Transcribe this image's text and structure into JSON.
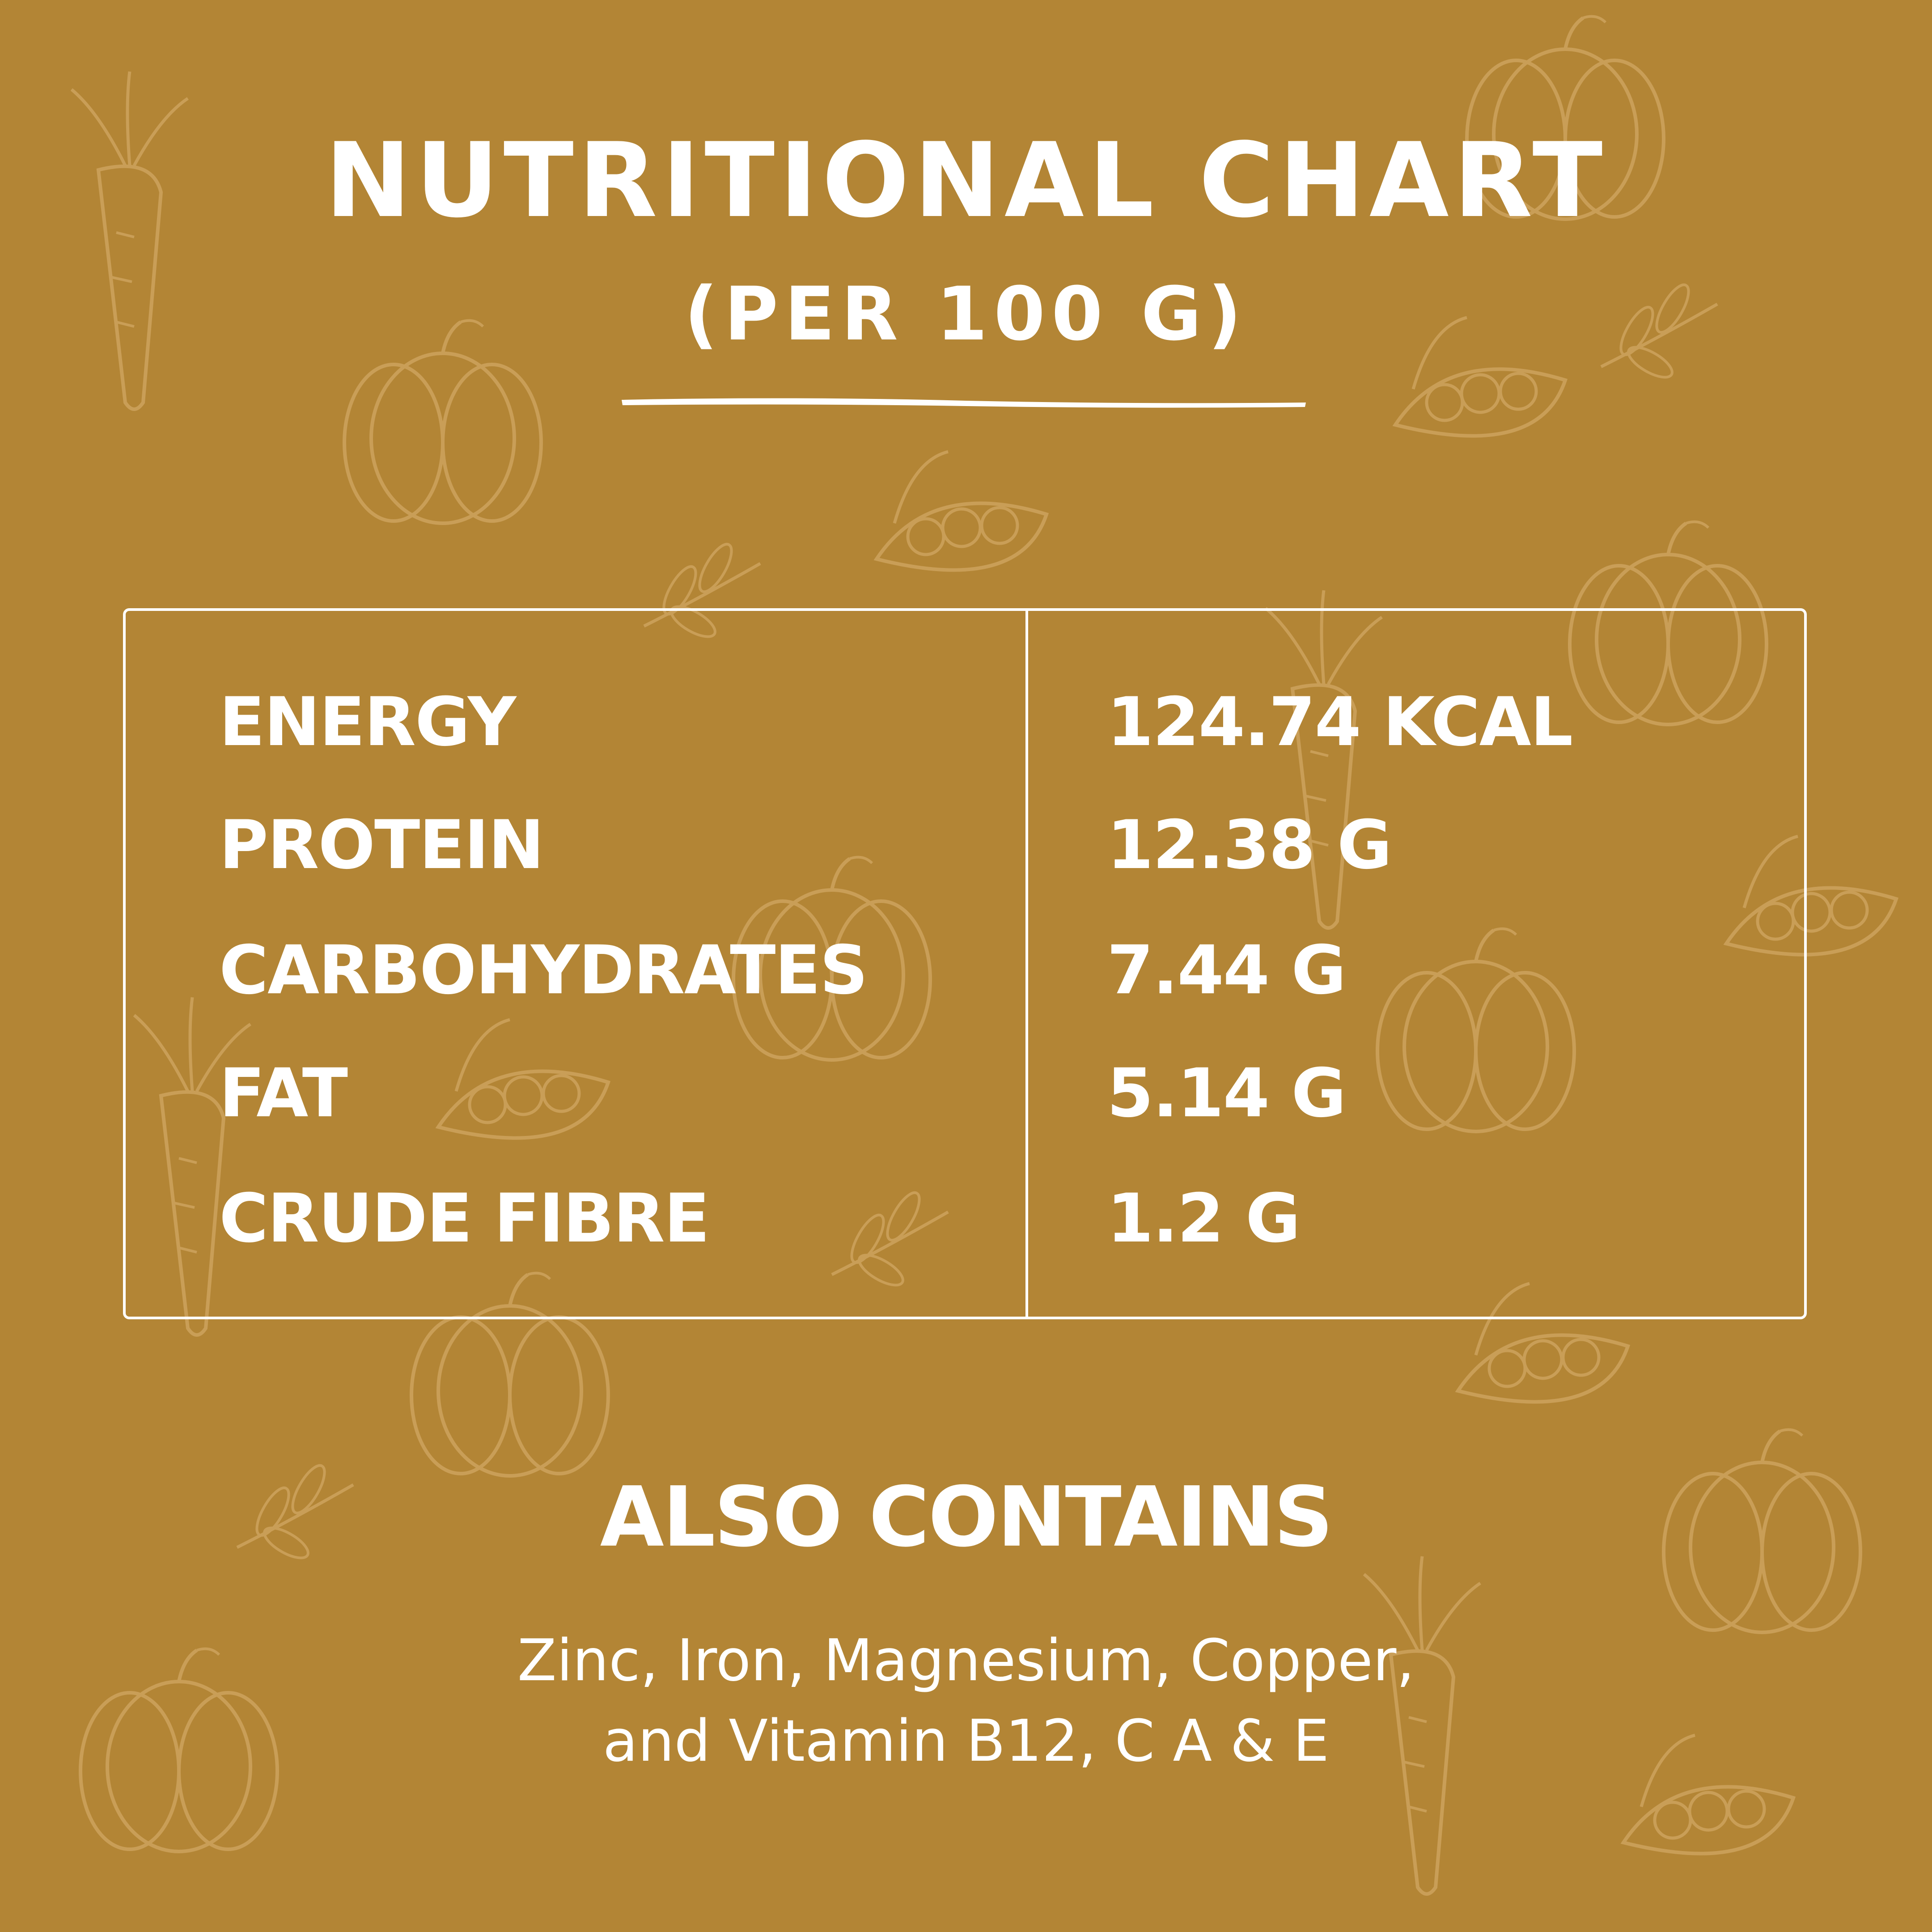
{
  "header": {
    "title": "NUTRITIONAL CHART",
    "subtitle": "(PER 100 G)"
  },
  "nutrients": [
    {
      "label": "ENERGY",
      "value": "124.74 KCAL"
    },
    {
      "label": "PROTEIN",
      "value": "12.38 G"
    },
    {
      "label": "CARBOHYDRATES",
      "value": "7.44 G"
    },
    {
      "label": "FAT",
      "value": "5.14 G"
    },
    {
      "label": "CRUDE FIBRE",
      "value": "1.2 G"
    }
  ],
  "also_contains": {
    "title": "ALSO CONTAINS",
    "lines": [
      "Zinc, Iron, Magnesium, Copper,",
      "and Vitamin B12, C A & E"
    ]
  },
  "colors": {
    "background": "#b38535",
    "text": "#ffffff",
    "doodle": "#c99e57"
  },
  "background_icons": [
    "carrot-icon",
    "pumpkin-icon",
    "peas-pod-icon",
    "leaf-sprig-icon"
  ]
}
